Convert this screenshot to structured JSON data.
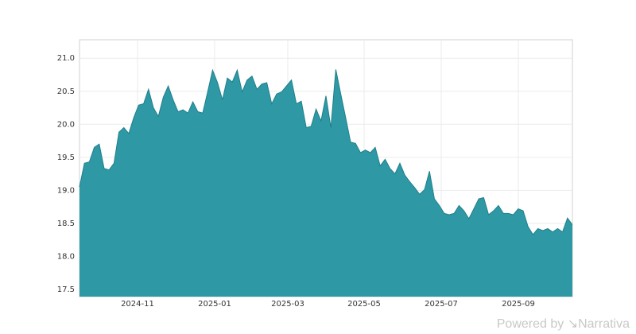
{
  "chart_data": {
    "type": "area",
    "color": "#2e99a5",
    "line_color": "#1f7f8a",
    "values": [
      19.05,
      19.41,
      19.43,
      19.65,
      19.7,
      19.33,
      19.31,
      19.41,
      19.88,
      19.95,
      19.86,
      20.1,
      20.29,
      20.31,
      20.53,
      20.25,
      20.12,
      20.41,
      20.58,
      20.37,
      20.19,
      20.22,
      20.17,
      20.34,
      20.19,
      20.17,
      20.49,
      20.82,
      20.63,
      20.37,
      20.7,
      20.64,
      20.82,
      20.49,
      20.67,
      20.73,
      20.53,
      20.61,
      20.63,
      20.31,
      20.46,
      20.49,
      20.58,
      20.67,
      20.31,
      20.35,
      19.95,
      19.97,
      20.23,
      20.05,
      20.43,
      19.95,
      20.83,
      20.46,
      20.1,
      19.73,
      19.71,
      19.57,
      19.61,
      19.57,
      19.65,
      19.37,
      19.47,
      19.33,
      19.25,
      19.41,
      19.23,
      19.13,
      19.04,
      18.94,
      19.01,
      19.29,
      18.87,
      18.77,
      18.65,
      18.63,
      18.65,
      18.77,
      18.69,
      18.57,
      18.72,
      18.87,
      18.89,
      18.63,
      18.69,
      18.77,
      18.65,
      18.65,
      18.63,
      18.72,
      18.69,
      18.45,
      18.33,
      18.42,
      18.39,
      18.42,
      18.37,
      18.42,
      18.37,
      18.58,
      18.48
    ],
    "xlim": [
      0,
      100
    ],
    "xticks": [
      {
        "value": 11.77,
        "label": "2024-11"
      },
      {
        "value": 27.42,
        "label": "2025-01"
      },
      {
        "value": 42.26,
        "label": "2025-03"
      },
      {
        "value": 57.74,
        "label": "2025-05"
      },
      {
        "value": 73.39,
        "label": "2025-07"
      },
      {
        "value": 89.03,
        "label": "2025-09"
      }
    ],
    "ylim": [
      17.39,
      21.28
    ],
    "yticks": [
      17.5,
      {
        "value": 18,
        "label": "18.0"
      },
      18.5,
      {
        "value": 19,
        "label": "19.0"
      },
      19.5,
      {
        "value": 20,
        "label": "20.0"
      },
      20.5,
      {
        "value": 21,
        "label": "21.0"
      }
    ],
    "grid": true
  },
  "footer": "Powered by ↘Narrativa"
}
